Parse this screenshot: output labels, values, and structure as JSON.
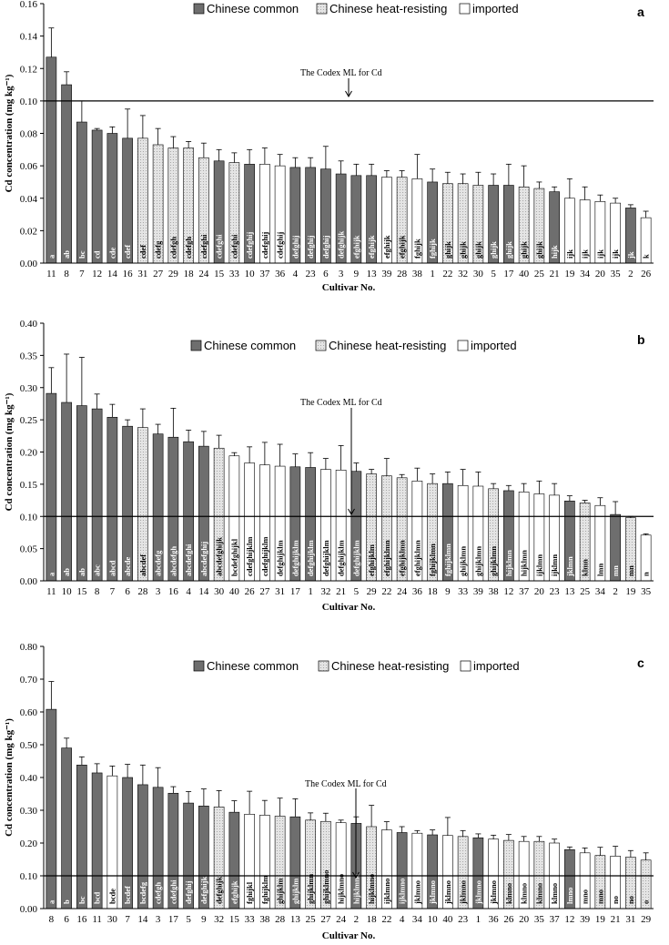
{
  "colors": {
    "common": "#6e6e6e",
    "heat": "#e4e4e4",
    "imported": "#ffffff",
    "hatch": "#9a9a9a",
    "axis": "#000000"
  },
  "chart_data": [
    {
      "type": "bar",
      "panel_label": "a",
      "ylabel": "Cd concentration (mg kg⁻¹)",
      "xlabel": "Cultivar No.",
      "ylim": [
        0,
        0.16
      ],
      "yticks": [
        0.0,
        0.02,
        0.04,
        0.06,
        0.08,
        0.1,
        0.12,
        0.14,
        0.16
      ],
      "ytick_labels": [
        "0.00",
        "0.02",
        "0.04",
        "0.06",
        "0.08",
        "0.10",
        "0.12",
        "0.14",
        "0.16"
      ],
      "legend": [
        "Chinese common",
        "Chinese heat-resisting",
        "imported"
      ],
      "reference_line": {
        "value": 0.1,
        "label": "The Codex ML for Cd"
      },
      "categories": [
        "11",
        "8",
        "7",
        "12",
        "14",
        "16",
        "31",
        "27",
        "29",
        "18",
        "24",
        "15",
        "33",
        "10",
        "37",
        "36",
        "4",
        "23",
        "6",
        "3",
        "9",
        "13",
        "39",
        "28",
        "38",
        "1",
        "22",
        "32",
        "30",
        "5",
        "17",
        "40",
        "25",
        "21",
        "19",
        "34",
        "20",
        "35",
        "2",
        "26"
      ],
      "values": [
        0.127,
        0.11,
        0.087,
        0.082,
        0.08,
        0.077,
        0.077,
        0.073,
        0.071,
        0.071,
        0.065,
        0.063,
        0.062,
        0.061,
        0.061,
        0.06,
        0.059,
        0.059,
        0.058,
        0.055,
        0.054,
        0.054,
        0.053,
        0.053,
        0.052,
        0.05,
        0.049,
        0.049,
        0.048,
        0.048,
        0.048,
        0.047,
        0.046,
        0.044,
        0.04,
        0.039,
        0.038,
        0.037,
        0.034,
        0.028
      ],
      "errors": [
        0.018,
        0.008,
        0.013,
        0.001,
        0.004,
        0.018,
        0.014,
        0.01,
        0.007,
        0.004,
        0.009,
        0.007,
        0.006,
        0.009,
        0.01,
        0.007,
        0.006,
        0.006,
        0.014,
        0.008,
        0.007,
        0.007,
        0.004,
        0.004,
        0.015,
        0.008,
        0.007,
        0.006,
        0.008,
        0.007,
        0.013,
        0.013,
        0.004,
        0.003,
        0.012,
        0.008,
        0.004,
        0.003,
        0.002,
        0.004
      ],
      "groups": [
        "C",
        "C",
        "C",
        "C",
        "C",
        "C",
        "H",
        "H",
        "H",
        "H",
        "H",
        "C",
        "H",
        "C",
        "I",
        "I",
        "C",
        "C",
        "C",
        "C",
        "C",
        "C",
        "I",
        "H",
        "I",
        "C",
        "H",
        "H",
        "H",
        "C",
        "C",
        "H",
        "H",
        "C",
        "I",
        "I",
        "I",
        "I",
        "C",
        "I"
      ],
      "letters": [
        "a",
        "ab",
        "bc",
        "cd",
        "cde",
        "cdef",
        "cdef",
        "cdefg",
        "cdefgh",
        "cdefgh",
        "cdefghi",
        "cdefghi",
        "cdefghi",
        "cdefghij",
        "cdefghij",
        "cdefghij",
        "defghij",
        "defghij",
        "defghij",
        "defghijk",
        "efghijk",
        "efghijk",
        "efghijk",
        "efghijk",
        "fghijk",
        "fghijk",
        "ghijk",
        "ghijk",
        "ghijk",
        "ghijk",
        "ghijk",
        "ghijk",
        "ghijk",
        "hijk",
        "ijk",
        "ijk",
        "ijk",
        "ijk",
        "jk",
        "k"
      ]
    },
    {
      "type": "bar",
      "panel_label": "b",
      "ylabel": "Cd concentration (mg kg⁻¹)",
      "xlabel": "Cultivar No.",
      "ylim": [
        0,
        0.4
      ],
      "yticks": [
        0.0,
        0.05,
        0.1,
        0.15,
        0.2,
        0.25,
        0.3,
        0.35,
        0.4
      ],
      "ytick_labels": [
        "0.00",
        "0.05",
        "0.10",
        "0.15",
        "0.20",
        "0.25",
        "0.30",
        "0.35",
        "0.40"
      ],
      "legend": [
        "Chinese common",
        "Chinese heat-resisting",
        "imported"
      ],
      "reference_line": {
        "value": 0.1,
        "label": "The Codex ML for Cd"
      },
      "categories": [
        "11",
        "10",
        "15",
        "8",
        "7",
        "6",
        "28",
        "3",
        "16",
        "4",
        "14",
        "30",
        "40",
        "26",
        "27",
        "31",
        "17",
        "1",
        "32",
        "21",
        "5",
        "29",
        "22",
        "24",
        "36",
        "18",
        "9",
        "33",
        "39",
        "38",
        "12",
        "37",
        "20",
        "23",
        "13",
        "25",
        "34",
        "2",
        "19",
        "35"
      ],
      "values": [
        0.291,
        0.277,
        0.272,
        0.267,
        0.254,
        0.24,
        0.238,
        0.228,
        0.223,
        0.216,
        0.209,
        0.206,
        0.194,
        0.183,
        0.18,
        0.178,
        0.177,
        0.176,
        0.173,
        0.172,
        0.17,
        0.166,
        0.163,
        0.16,
        0.155,
        0.151,
        0.151,
        0.148,
        0.147,
        0.143,
        0.14,
        0.138,
        0.135,
        0.133,
        0.124,
        0.121,
        0.117,
        0.103,
        0.098,
        0.071
      ],
      "errors": [
        0.04,
        0.075,
        0.075,
        0.023,
        0.02,
        0.01,
        0.029,
        0.015,
        0.045,
        0.018,
        0.023,
        0.02,
        0.005,
        0.025,
        0.035,
        0.034,
        0.02,
        0.023,
        0.017,
        0.038,
        0.013,
        0.007,
        0.027,
        0.005,
        0.02,
        0.015,
        0.018,
        0.025,
        0.022,
        0.008,
        0.008,
        0.013,
        0.02,
        0.018,
        0.008,
        0.004,
        0.012,
        0.02,
        0.002,
        0.002
      ],
      "groups": [
        "C",
        "C",
        "C",
        "C",
        "C",
        "C",
        "H",
        "C",
        "C",
        "C",
        "C",
        "H",
        "I",
        "I",
        "I",
        "I",
        "C",
        "C",
        "I",
        "I",
        "C",
        "H",
        "H",
        "H",
        "I",
        "H",
        "C",
        "I",
        "I",
        "H",
        "C",
        "I",
        "I",
        "I",
        "C",
        "H",
        "I",
        "C",
        "H",
        "I"
      ],
      "letters": [
        "a",
        "ab",
        "ab",
        "abc",
        "abcd",
        "abcde",
        "abcdef",
        "abcdefg",
        "abcdefgh",
        "abcdefghi",
        "abcdefghij",
        "abcdefghijk",
        "bcdefghijkl",
        "cdefghijklm",
        "cdefghijklm",
        "defghijklm",
        "defghijklm",
        "defghijklm",
        "defghijklm",
        "defghijklm",
        "defghijklm",
        "efghijklm",
        "efghijklmn",
        "efghijklmn",
        "efghijklmn",
        "fghijklmn",
        "fghijklmn",
        "ghijklmn",
        "ghijklmn",
        "ghijklmn",
        "hijklmn",
        "hijklmn",
        "ijklmn",
        "ijklmn",
        "jklmn",
        "klmn",
        "lmn",
        "mn",
        "mn",
        "n"
      ]
    },
    {
      "type": "bar",
      "panel_label": "c",
      "ylabel": "Cd concentration (mg kg⁻¹)",
      "xlabel": "Cultivar No.",
      "ylim": [
        0,
        0.8
      ],
      "yticks": [
        0.0,
        0.1,
        0.2,
        0.3,
        0.4,
        0.5,
        0.6,
        0.7,
        0.8
      ],
      "ytick_labels": [
        "0.00",
        "0.10",
        "0.20",
        "0.30",
        "0.40",
        "0.50",
        "0.60",
        "0.70",
        "0.80"
      ],
      "legend": [
        "Chinese common",
        "Chinese heat-resisting",
        "imported"
      ],
      "reference_line": {
        "value": 0.1,
        "label": "The Codex ML for Cd"
      },
      "categories": [
        "8",
        "6",
        "16",
        "11",
        "30",
        "7",
        "14",
        "3",
        "17",
        "5",
        "9",
        "32",
        "15",
        "33",
        "38",
        "28",
        "13",
        "25",
        "27",
        "24",
        "2",
        "18",
        "22",
        "4",
        "34",
        "10",
        "40",
        "23",
        "1",
        "36",
        "26",
        "20",
        "35",
        "37",
        "12",
        "39",
        "19",
        "21",
        "31",
        "29"
      ],
      "values": [
        0.608,
        0.49,
        0.438,
        0.414,
        0.405,
        0.4,
        0.378,
        0.37,
        0.352,
        0.322,
        0.313,
        0.31,
        0.294,
        0.288,
        0.285,
        0.282,
        0.28,
        0.27,
        0.266,
        0.262,
        0.26,
        0.25,
        0.24,
        0.232,
        0.23,
        0.225,
        0.223,
        0.22,
        0.216,
        0.212,
        0.208,
        0.205,
        0.205,
        0.2,
        0.18,
        0.17,
        0.162,
        0.16,
        0.157,
        0.148
      ],
      "errors": [
        0.085,
        0.03,
        0.025,
        0.028,
        0.03,
        0.04,
        0.06,
        0.06,
        0.02,
        0.035,
        0.052,
        0.05,
        0.035,
        0.07,
        0.045,
        0.055,
        0.055,
        0.022,
        0.025,
        0.008,
        0.02,
        0.065,
        0.025,
        0.018,
        0.008,
        0.015,
        0.055,
        0.018,
        0.012,
        0.012,
        0.018,
        0.015,
        0.015,
        0.012,
        0.008,
        0.015,
        0.025,
        0.03,
        0.02,
        0.022
      ],
      "groups": [
        "C",
        "C",
        "C",
        "C",
        "I",
        "C",
        "C",
        "C",
        "C",
        "C",
        "C",
        "H",
        "C",
        "I",
        "I",
        "H",
        "C",
        "H",
        "H",
        "I",
        "C",
        "H",
        "I",
        "C",
        "I",
        "C",
        "I",
        "H",
        "C",
        "I",
        "H",
        "I",
        "H",
        "I",
        "C",
        "I",
        "H",
        "I",
        "H",
        "H"
      ],
      "letters": [
        "a",
        "b",
        "bc",
        "bcd",
        "bcde",
        "bcdef",
        "bcdefg",
        "cdefgh",
        "cdefghi",
        "defghij",
        "defghijk",
        "defghijk",
        "efghijk",
        "fghijkl",
        "fghijklm",
        "ghijklm",
        "ghijklm",
        "ghijklmn",
        "ghijklmno",
        "hijklmno",
        "hijklmno",
        "hijklmno",
        "ijklmno",
        "ijklmno",
        "jklmno",
        "jklmno",
        "jklmno",
        "jklmno",
        "jklmno",
        "jklmno",
        "klmno",
        "klmno",
        "klmno",
        "klmno",
        "lmno",
        "mno",
        "mno",
        "no",
        "no",
        "o"
      ]
    }
  ]
}
